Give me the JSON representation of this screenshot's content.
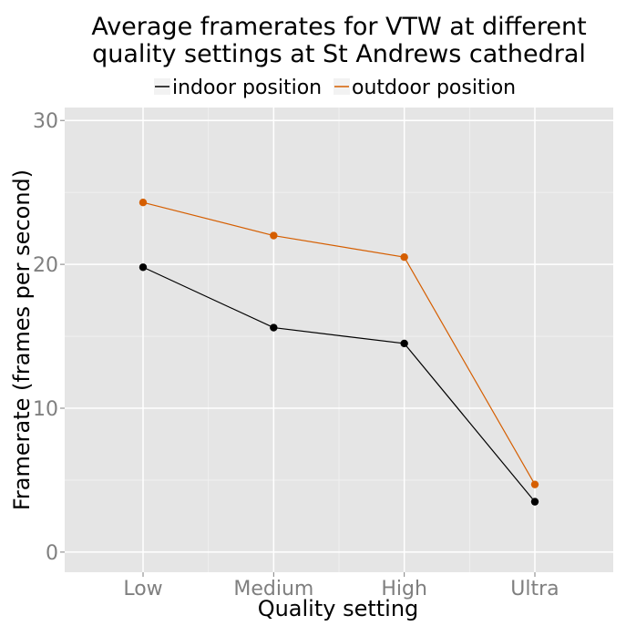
{
  "chart_data": {
    "type": "line",
    "title_lines": [
      "Average framerates for VTW at different",
      "quality settings at St Andrews cathedral"
    ],
    "xlabel": "Quality setting",
    "ylabel": "Framerate (frames per second)",
    "categories": [
      "Low",
      "Medium",
      "High",
      "Ultra"
    ],
    "y_ticks": [
      "0",
      "10",
      "20",
      "30"
    ],
    "ylim": [
      -1.4,
      30.9
    ],
    "grid": true,
    "legend_position": "top",
    "series": [
      {
        "name": "indoor position",
        "color": "#000000",
        "values": [
          19.8,
          15.6,
          14.5,
          3.5
        ]
      },
      {
        "name": "outdoor position",
        "color": "#d55e00",
        "values": [
          24.3,
          22.0,
          20.5,
          4.7
        ]
      }
    ]
  }
}
